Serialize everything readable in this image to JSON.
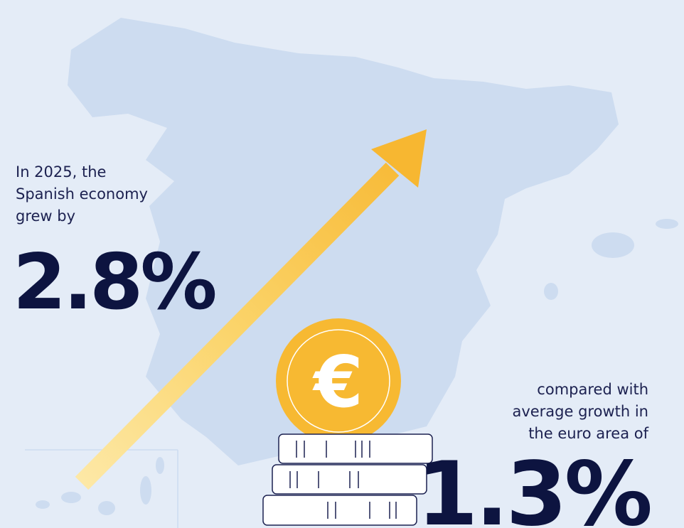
{
  "intro": {
    "lines": [
      "In 2025, the",
      "Spanish economy",
      "grew by"
    ],
    "figure": "2.8%"
  },
  "comparison": {
    "lines": [
      "compared with",
      "average growth in",
      "the euro area of"
    ],
    "figure": "1.3%"
  },
  "coin_symbol": "€"
}
